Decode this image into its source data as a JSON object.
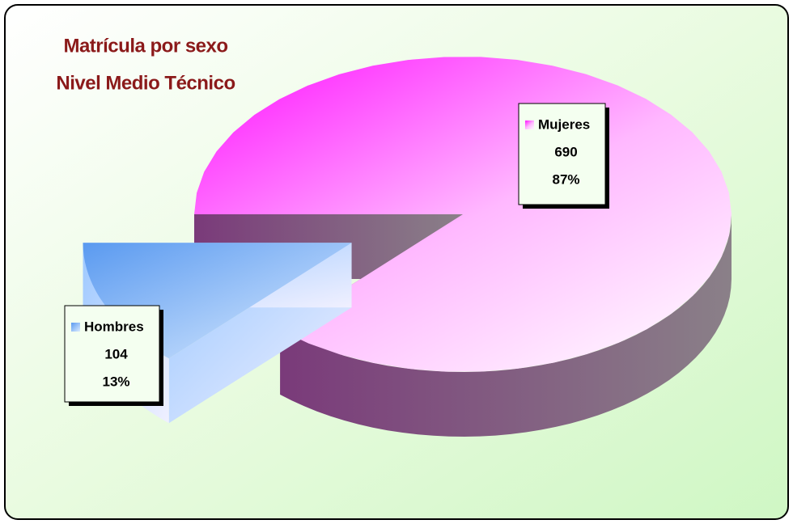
{
  "chart_data": {
    "type": "pie",
    "title": "Matrícula por sexo",
    "subtitle": "Nivel Medio Técnico",
    "categories": [
      "Mujeres",
      "Hombres"
    ],
    "values": [
      690,
      104
    ],
    "percentages": [
      {
        "value": 87,
        "label": "87%"
      },
      {
        "value": 13,
        "label": "13%"
      }
    ],
    "colors": [
      "#ff44ff",
      "#6fa8f0"
    ]
  }
}
